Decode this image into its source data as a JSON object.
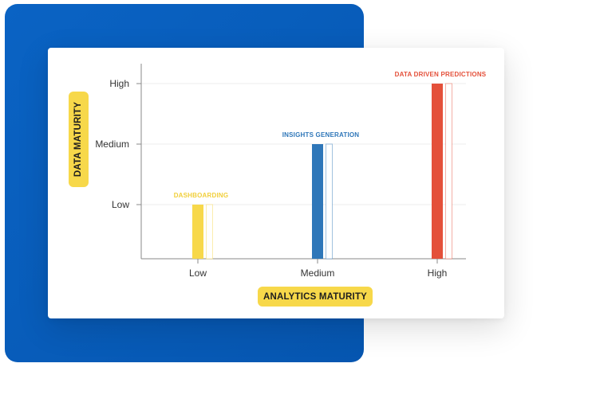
{
  "chart_data": {
    "type": "bar",
    "categories": [
      "Low",
      "Medium",
      "High"
    ],
    "y_levels": [
      "Low",
      "Medium",
      "High"
    ],
    "values": [
      1,
      2,
      3
    ],
    "bar_labels": [
      "DASHBOARDING",
      "INSIGHTS GENERATION",
      "DATA DRIVEN PREDICTIONS"
    ],
    "colors": [
      "#f7d84a",
      "#2f77b9",
      "#e4503a"
    ],
    "xlabel": "ANALYTICS MATURITY",
    "ylabel": "DATA MATURITY",
    "ylim": [
      0,
      3
    ],
    "grid": true
  }
}
